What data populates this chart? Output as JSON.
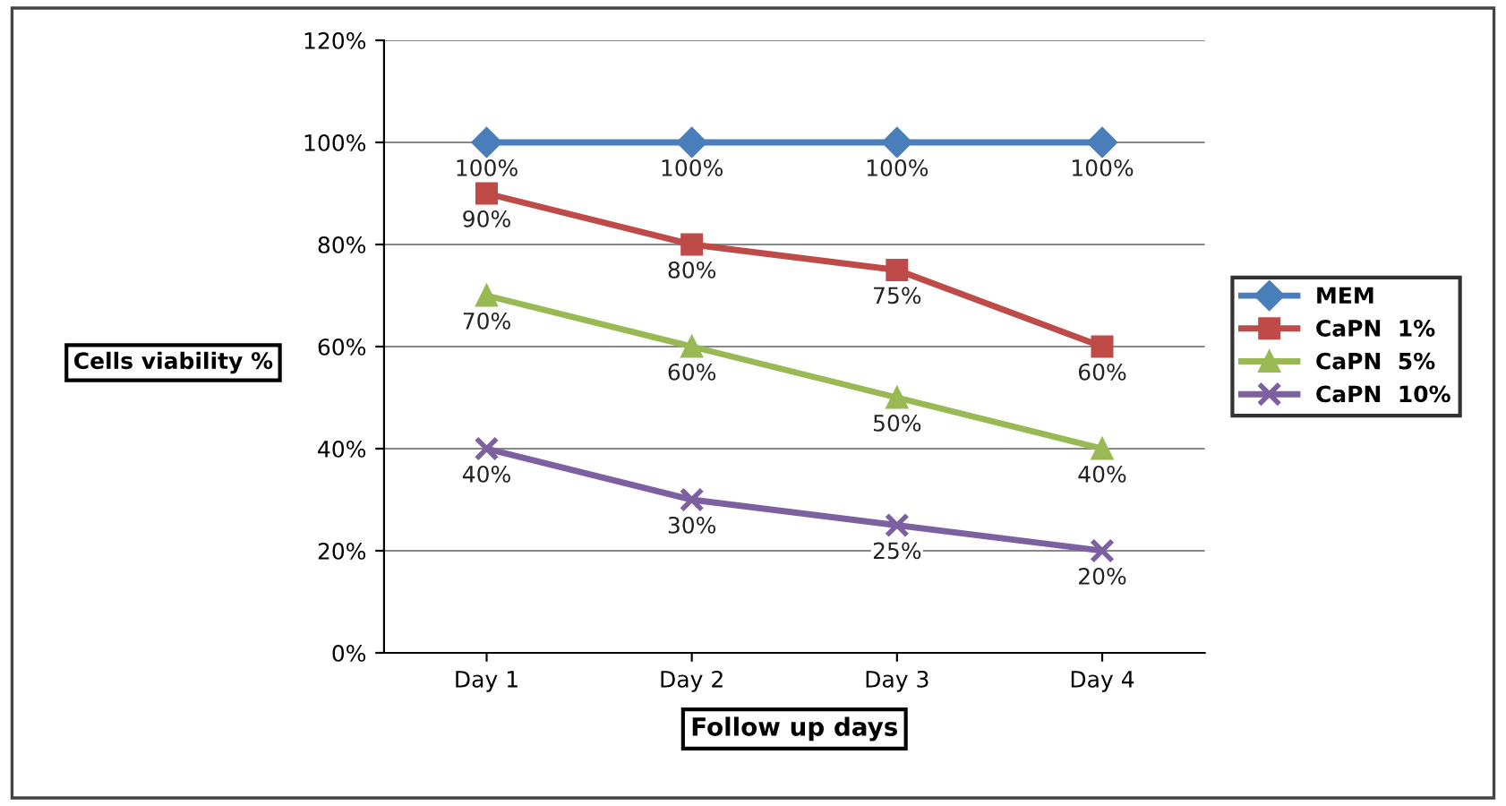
{
  "chart_data": {
    "type": "line",
    "xlabel": "Follow up days",
    "ylabel": "Cells viability %",
    "categories": [
      "Day 1",
      "Day 2",
      "Day 3",
      "Day 4"
    ],
    "series": [
      {
        "name": "MEM",
        "color": "#4a7ebb",
        "marker": "diamond",
        "values": [
          100,
          100,
          100,
          100
        ],
        "value_labels": [
          "100%",
          "100%",
          "100%",
          "100%"
        ]
      },
      {
        "name": "CaPN  1%",
        "color": "#be4b48",
        "marker": "square",
        "values": [
          90,
          80,
          75,
          60
        ],
        "value_labels": [
          "90%",
          "80%",
          "75%",
          "60%"
        ]
      },
      {
        "name": "CaPN  5%",
        "color": "#98b954",
        "marker": "triangle",
        "values": [
          70,
          60,
          50,
          40
        ],
        "value_labels": [
          "70%",
          "60%",
          "50%",
          "40%"
        ]
      },
      {
        "name": "CaPN  10%",
        "color": "#7d60a0",
        "marker": "cross",
        "values": [
          40,
          30,
          25,
          20
        ],
        "value_labels": [
          "40%",
          "30%",
          "25%",
          "20%"
        ]
      }
    ],
    "ylim": [
      0,
      120
    ],
    "yticks": [
      {
        "value": 0,
        "label": "0%"
      },
      {
        "value": 20,
        "label": "20%"
      },
      {
        "value": 40,
        "label": "40%"
      },
      {
        "value": 60,
        "label": "60%"
      },
      {
        "value": 80,
        "label": "80%"
      },
      {
        "value": 100,
        "label": "100%"
      },
      {
        "value": 120,
        "label": "120%"
      }
    ],
    "grid": "y",
    "legend": "right",
    "line_style": "solid"
  }
}
